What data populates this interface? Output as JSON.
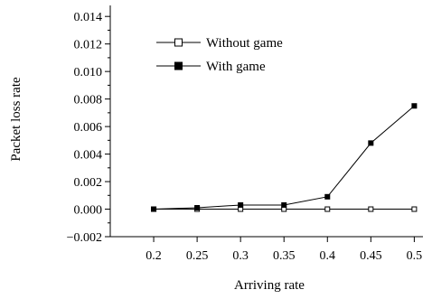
{
  "chart_data": {
    "type": "line",
    "title": "",
    "xlabel": "Arriving rate",
    "ylabel": "Packet loss rate",
    "x": [
      0.2,
      0.25,
      0.3,
      0.35,
      0.4,
      0.45,
      0.5
    ],
    "x_tick_labels": [
      "0.2",
      "0.25",
      "0.3",
      "0.35",
      "0.4",
      "0.45",
      "0.5"
    ],
    "y_ticks": [
      -0.002,
      0.0,
      0.002,
      0.004,
      0.006,
      0.008,
      0.01,
      0.012,
      0.014
    ],
    "y_tick_labels": [
      "−0.002",
      "0.000",
      "0.002",
      "0.004",
      "0.006",
      "0.008",
      "0.010",
      "0.012",
      "0.014"
    ],
    "xlim": [
      0.15,
      0.51
    ],
    "ylim": [
      -0.002,
      0.0148
    ],
    "grid": false,
    "legend_position": "top-center",
    "series": [
      {
        "name": "Without game",
        "marker": "open-square",
        "color": "#000000",
        "values": [
          0.0,
          0.0,
          0.0,
          0.0,
          0.0,
          0.0,
          0.0
        ]
      },
      {
        "name": "With game",
        "marker": "filled-square",
        "color": "#000000",
        "values": [
          0.0,
          0.0001,
          0.0003,
          0.0003,
          0.0009,
          0.0048,
          0.0075
        ]
      }
    ]
  }
}
